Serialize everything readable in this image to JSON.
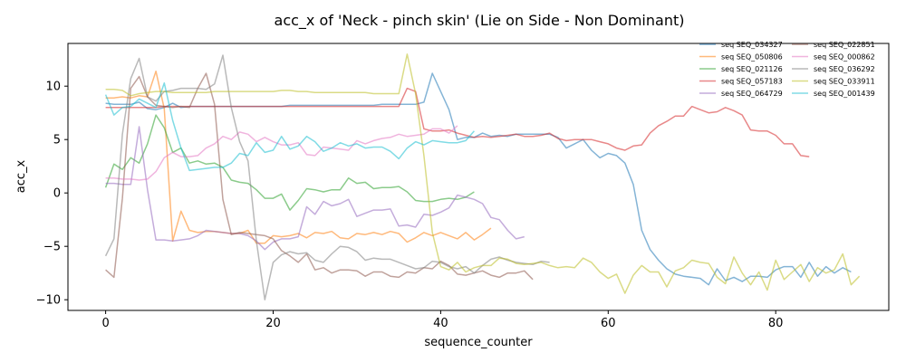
{
  "chart_data": {
    "type": "line",
    "title": "acc_x of 'Neck - pinch skin' (Lie on Side - Non Dominant)",
    "xlabel": "sequence_counter",
    "ylabel": "acc_x",
    "xlim": [
      -4.5,
      93.5
    ],
    "ylim": [
      -11,
      14
    ],
    "xticks": [
      0,
      20,
      40,
      60,
      80
    ],
    "yticks": [
      -10,
      -5,
      0,
      5,
      10
    ],
    "grid": false,
    "legend_position": "top-right",
    "legend_columns": 2,
    "line_opacity": 0.55,
    "series": [
      {
        "name": "seq SEQ_034327",
        "color": "#1f77b4",
        "values": [
          8.4,
          8.3,
          8.3,
          8.3,
          8.5,
          7.9,
          7.8,
          8.0,
          8.4,
          8.0,
          8.1,
          8.1,
          8.1,
          8.1,
          8.1,
          8.1,
          8.1,
          8.1,
          8.1,
          8.1,
          8.1,
          8.1,
          8.2,
          8.2,
          8.2,
          8.2,
          8.2,
          8.2,
          8.2,
          8.2,
          8.2,
          8.2,
          8.2,
          8.3,
          8.3,
          8.3,
          8.3,
          8.3,
          8.5,
          11.2,
          9.5,
          7.8,
          5.0,
          5.2,
          5.2,
          5.6,
          5.3,
          5.4,
          5.3,
          5.5,
          5.5,
          5.5,
          5.5,
          5.5,
          5.2,
          4.2,
          4.6,
          5.0,
          4.0,
          3.3,
          3.7,
          3.5,
          2.8,
          0.8,
          -3.5,
          -5.3,
          -6.3,
          -7.1,
          -7.6,
          -7.8,
          -7.9,
          -8.0,
          -8.6,
          -7.1,
          -8.2,
          -7.9,
          -8.3,
          -7.8,
          -7.8,
          -7.9,
          -7.2,
          -6.9,
          -6.9,
          -7.9,
          -6.5,
          -7.8,
          -6.9,
          -7.5,
          -7.0,
          -7.4
        ]
      },
      {
        "name": "seq SEQ_050806",
        "color": "#ff7f0e",
        "values": [
          8.9,
          8.9,
          9.0,
          8.9,
          9.1,
          9.0,
          11.4,
          7.9,
          -4.5,
          -1.7,
          -3.5,
          -3.7,
          -3.6,
          -3.6,
          -3.7,
          -3.8,
          -3.8,
          -3.5,
          -4.7,
          -4.7,
          -4.0,
          -4.1,
          -4.0,
          -3.8,
          -4.2,
          -3.7,
          -3.8,
          -3.6,
          -4.2,
          -4.3,
          -3.8,
          -3.9,
          -3.7,
          -3.9,
          -3.6,
          -3.8,
          -4.6,
          -4.2,
          -3.7,
          -4.0,
          -3.7,
          -4.0,
          -4.3,
          -3.7,
          -4.4,
          -3.9,
          -3.3
        ]
      },
      {
        "name": "seq SEQ_021126",
        "color": "#2ca02c",
        "values": [
          0.5,
          2.7,
          2.2,
          3.3,
          2.8,
          4.6,
          7.3,
          6.1,
          3.8,
          4.2,
          2.8,
          3.0,
          2.7,
          2.8,
          2.4,
          1.2,
          1.0,
          0.9,
          0.3,
          -0.5,
          -0.5,
          -0.1,
          -1.6,
          -0.7,
          0.4,
          0.3,
          0.1,
          0.3,
          0.3,
          1.4,
          0.9,
          1.0,
          0.4,
          0.5,
          0.5,
          0.6,
          0.1,
          -0.7,
          -0.8,
          -0.8,
          -0.6,
          -0.5,
          -0.6,
          -0.4,
          0.1
        ]
      },
      {
        "name": "seq SEQ_057183",
        "color": "#d62728",
        "values": [
          8.0,
          8.0,
          8.0,
          8.0,
          8.0,
          8.0,
          8.0,
          8.1,
          8.1,
          8.1,
          8.1,
          8.1,
          8.1,
          8.1,
          8.1,
          8.1,
          8.1,
          8.1,
          8.1,
          8.1,
          8.1,
          8.1,
          8.1,
          8.1,
          8.1,
          8.1,
          8.1,
          8.1,
          8.1,
          8.1,
          8.1,
          8.1,
          8.1,
          8.1,
          8.1,
          8.1,
          9.8,
          9.5,
          6.0,
          5.8,
          5.8,
          5.9,
          5.6,
          5.4,
          5.2,
          5.3,
          5.2,
          5.3,
          5.4,
          5.5,
          5.3,
          5.3,
          5.4,
          5.6,
          5.1,
          4.9,
          5.0,
          5.0,
          5.0,
          4.8,
          4.6,
          4.2,
          4.0,
          4.4,
          4.5,
          5.6,
          6.3,
          6.7,
          7.2,
          7.2,
          8.1,
          7.8,
          7.5,
          7.6,
          8.0,
          7.7,
          7.3,
          5.9,
          5.8,
          5.8,
          5.4,
          4.6,
          4.6,
          3.5,
          3.4
        ]
      },
      {
        "name": "seq SEQ_064729",
        "color": "#9467bd",
        "values": [
          0.9,
          0.9,
          0.8,
          0.8,
          6.2,
          0.3,
          -4.4,
          -4.4,
          -4.5,
          -4.4,
          -4.3,
          -4.0,
          -3.5,
          -3.6,
          -3.7,
          -3.8,
          -3.8,
          -4.0,
          -4.5,
          -5.3,
          -4.6,
          -4.3,
          -4.3,
          -4.1,
          -1.3,
          -2.0,
          -0.8,
          -1.2,
          -1.0,
          -0.6,
          -2.2,
          -1.9,
          -1.6,
          -1.6,
          -1.5,
          -3.1,
          -3.0,
          -3.2,
          -2.0,
          -2.1,
          -1.8,
          -1.4,
          -0.2,
          -0.4,
          -0.6,
          -1.0,
          -2.3,
          -2.5,
          -3.5,
          -4.3,
          -4.1
        ]
      },
      {
        "name": "seq SEQ_022851",
        "color": "#8c564b",
        "values": [
          -7.2,
          -7.9,
          -0.5,
          9.8,
          10.9,
          9.0,
          8.2,
          8.1,
          8.0,
          8.1,
          8.0,
          9.8,
          11.2,
          8.3,
          -0.6,
          -3.9,
          -3.7,
          -3.8,
          -3.9,
          -4.0,
          -4.3,
          -5.4,
          -5.9,
          -6.5,
          -5.7,
          -7.2,
          -7.0,
          -7.5,
          -7.2,
          -7.2,
          -7.3,
          -7.8,
          -7.4,
          -7.4,
          -7.8,
          -7.9,
          -7.4,
          -7.5,
          -7.0,
          -7.1,
          -6.4,
          -6.8,
          -7.6,
          -7.7,
          -7.5,
          -7.3,
          -7.7,
          -7.9,
          -7.5,
          -7.5,
          -7.3,
          -8.1
        ]
      },
      {
        "name": "seq SEQ_000862",
        "color": "#e377c2",
        "values": [
          1.4,
          1.4,
          1.3,
          1.3,
          1.2,
          1.3,
          2.0,
          3.3,
          3.8,
          3.4,
          3.4,
          3.5,
          4.2,
          4.6,
          5.3,
          5.0,
          5.7,
          5.5,
          4.8,
          5.2,
          4.8,
          4.5,
          4.5,
          4.7,
          3.6,
          3.5,
          4.3,
          4.2,
          4.1,
          4.0,
          4.9,
          4.6,
          4.9,
          5.1,
          5.2,
          5.5,
          5.3,
          5.4,
          5.5,
          6.0,
          6.0,
          5.6,
          6.3
        ]
      },
      {
        "name": "seq SEQ_036292",
        "color": "#7f7f7f",
        "values": [
          -5.9,
          -4.3,
          5.5,
          10.7,
          12.6,
          9.0,
          8.6,
          9.5,
          9.6,
          9.8,
          9.8,
          9.8,
          9.7,
          10.2,
          12.9,
          8.0,
          4.8,
          3.0,
          -4.5,
          -10.0,
          -6.5,
          -5.8,
          -5.5,
          -5.7,
          -5.6,
          -6.3,
          -6.5,
          -5.7,
          -5.0,
          -5.1,
          -5.5,
          -6.3,
          -6.1,
          -6.2,
          -6.2,
          -6.5,
          -6.8,
          -7.1,
          -7.0,
          -6.4,
          -6.5,
          -6.9,
          -7.1,
          -6.9,
          -7.5,
          -6.8,
          -6.2,
          -6.0,
          -6.3,
          -6.5,
          -6.6,
          -6.7,
          -6.4,
          -6.5
        ]
      },
      {
        "name": "seq SEQ_033911",
        "color": "#bcbd22",
        "values": [
          9.7,
          9.7,
          9.6,
          9.1,
          9.3,
          9.4,
          9.5,
          9.5,
          9.4,
          9.4,
          9.4,
          9.4,
          9.4,
          9.5,
          9.5,
          9.5,
          9.5,
          9.5,
          9.5,
          9.5,
          9.5,
          9.6,
          9.6,
          9.5,
          9.5,
          9.4,
          9.4,
          9.4,
          9.4,
          9.4,
          9.4,
          9.4,
          9.3,
          9.3,
          9.3,
          9.3,
          13.0,
          9.3,
          3.5,
          -3.7,
          -6.9,
          -7.2,
          -6.5,
          -7.4,
          -7.0,
          -6.8,
          -6.8,
          -6.1,
          -6.2,
          -6.6,
          -6.7,
          -6.6,
          -6.5,
          -6.8,
          -7.0,
          -6.9,
          -7.0,
          -6.1,
          -6.5,
          -7.4,
          -8.0,
          -7.6,
          -9.4,
          -7.7,
          -6.8,
          -7.4,
          -7.4,
          -8.8,
          -7.3,
          -7.0,
          -6.3,
          -6.5,
          -6.6,
          -7.9,
          -8.5,
          -6.0,
          -7.5,
          -8.6,
          -7.4,
          -9.1,
          -6.3,
          -8.1,
          -7.4,
          -6.7,
          -8.3,
          -7.0,
          -7.5,
          -7.2,
          -5.7,
          -8.6,
          -7.8
        ]
      },
      {
        "name": "seq SEQ_001439",
        "color": "#17becf",
        "values": [
          9.2,
          7.3,
          8.0,
          8.1,
          8.8,
          8.4,
          8.0,
          10.3,
          6.8,
          4.2,
          2.1,
          2.2,
          2.3,
          2.4,
          2.4,
          2.8,
          3.7,
          3.5,
          4.7,
          3.8,
          4.0,
          5.3,
          4.1,
          4.4,
          5.3,
          4.8,
          3.9,
          4.2,
          4.7,
          4.4,
          4.6,
          4.2,
          4.3,
          4.3,
          3.9,
          3.2,
          4.2,
          4.8,
          4.5,
          4.9,
          4.8,
          4.7,
          4.7,
          4.9,
          5.8
        ]
      }
    ]
  }
}
